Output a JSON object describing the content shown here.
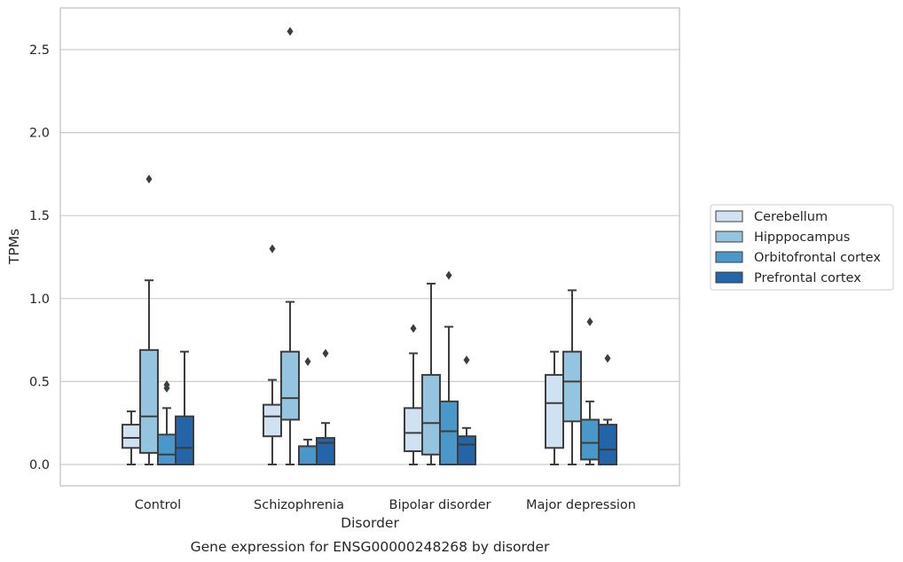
{
  "chart_data": {
    "type": "box",
    "caption": "Gene expression for ENSG00000248268 by disorder",
    "xlabel": "Disorder",
    "ylabel": "TPMs",
    "ylim": [
      -0.125,
      2.75
    ],
    "yticks": [
      0.0,
      0.5,
      1.0,
      1.5,
      2.0,
      2.5
    ],
    "ytick_labels": [
      "0.0",
      "0.5",
      "1.0",
      "1.5",
      "2.0",
      "2.5"
    ],
    "grid": "horizontal",
    "legend_position": "outside-right",
    "categories": [
      "Control",
      "Schizophrenia",
      "Bipolar disorder",
      "Major depression"
    ],
    "series": [
      {
        "name": "Cerebellum",
        "color": "#d0e1f2",
        "boxes": [
          {
            "whisker_low": 0.0,
            "q1": 0.1,
            "median": 0.16,
            "q3": 0.24,
            "whisker_high": 0.32,
            "outliers": []
          },
          {
            "whisker_low": 0.0,
            "q1": 0.17,
            "median": 0.29,
            "q3": 0.36,
            "whisker_high": 0.51,
            "outliers": [
              1.3
            ]
          },
          {
            "whisker_low": 0.0,
            "q1": 0.08,
            "median": 0.19,
            "q3": 0.34,
            "whisker_high": 0.67,
            "outliers": [
              0.82
            ]
          },
          {
            "whisker_low": 0.0,
            "q1": 0.1,
            "median": 0.37,
            "q3": 0.54,
            "whisker_high": 0.68,
            "outliers": []
          }
        ]
      },
      {
        "name": "Hipppocampus",
        "color": "#94c4df",
        "boxes": [
          {
            "whisker_low": 0.0,
            "q1": 0.07,
            "median": 0.29,
            "q3": 0.69,
            "whisker_high": 1.11,
            "outliers": [
              1.72
            ]
          },
          {
            "whisker_low": 0.0,
            "q1": 0.27,
            "median": 0.4,
            "q3": 0.68,
            "whisker_high": 0.98,
            "outliers": [
              2.61
            ]
          },
          {
            "whisker_low": 0.0,
            "q1": 0.06,
            "median": 0.25,
            "q3": 0.54,
            "whisker_high": 1.09,
            "outliers": []
          },
          {
            "whisker_low": 0.0,
            "q1": 0.26,
            "median": 0.5,
            "q3": 0.68,
            "whisker_high": 1.05,
            "outliers": []
          }
        ]
      },
      {
        "name": "Orbitofrontal cortex",
        "color": "#4a98c9",
        "boxes": [
          {
            "whisker_low": 0.0,
            "q1": 0.0,
            "median": 0.06,
            "q3": 0.18,
            "whisker_high": 0.34,
            "outliers": [
              0.46,
              0.48
            ]
          },
          {
            "whisker_low": 0.0,
            "q1": 0.0,
            "median": 0.0,
            "q3": 0.11,
            "whisker_high": 0.15,
            "outliers": [
              0.62
            ]
          },
          {
            "whisker_low": 0.0,
            "q1": 0.0,
            "median": 0.2,
            "q3": 0.38,
            "whisker_high": 0.83,
            "outliers": [
              1.14
            ]
          },
          {
            "whisker_low": 0.0,
            "q1": 0.03,
            "median": 0.13,
            "q3": 0.27,
            "whisker_high": 0.38,
            "outliers": [
              0.86
            ]
          }
        ]
      },
      {
        "name": "Prefrontal cortex",
        "color": "#2464a8",
        "boxes": [
          {
            "whisker_low": 0.0,
            "q1": 0.0,
            "median": 0.1,
            "q3": 0.29,
            "whisker_high": 0.68,
            "outliers": []
          },
          {
            "whisker_low": 0.0,
            "q1": 0.0,
            "median": 0.13,
            "q3": 0.16,
            "whisker_high": 0.25,
            "outliers": [
              0.67
            ]
          },
          {
            "whisker_low": 0.0,
            "q1": 0.0,
            "median": 0.12,
            "q3": 0.17,
            "whisker_high": 0.22,
            "outliers": [
              0.63
            ]
          },
          {
            "whisker_low": 0.0,
            "q1": 0.0,
            "median": 0.09,
            "q3": 0.24,
            "whisker_high": 0.27,
            "outliers": [
              0.64
            ]
          }
        ]
      }
    ]
  },
  "colors": {
    "frame": "#cccccc",
    "grid": "#cccccc",
    "box_edge": "#3d3d3d",
    "text": "#262626"
  }
}
